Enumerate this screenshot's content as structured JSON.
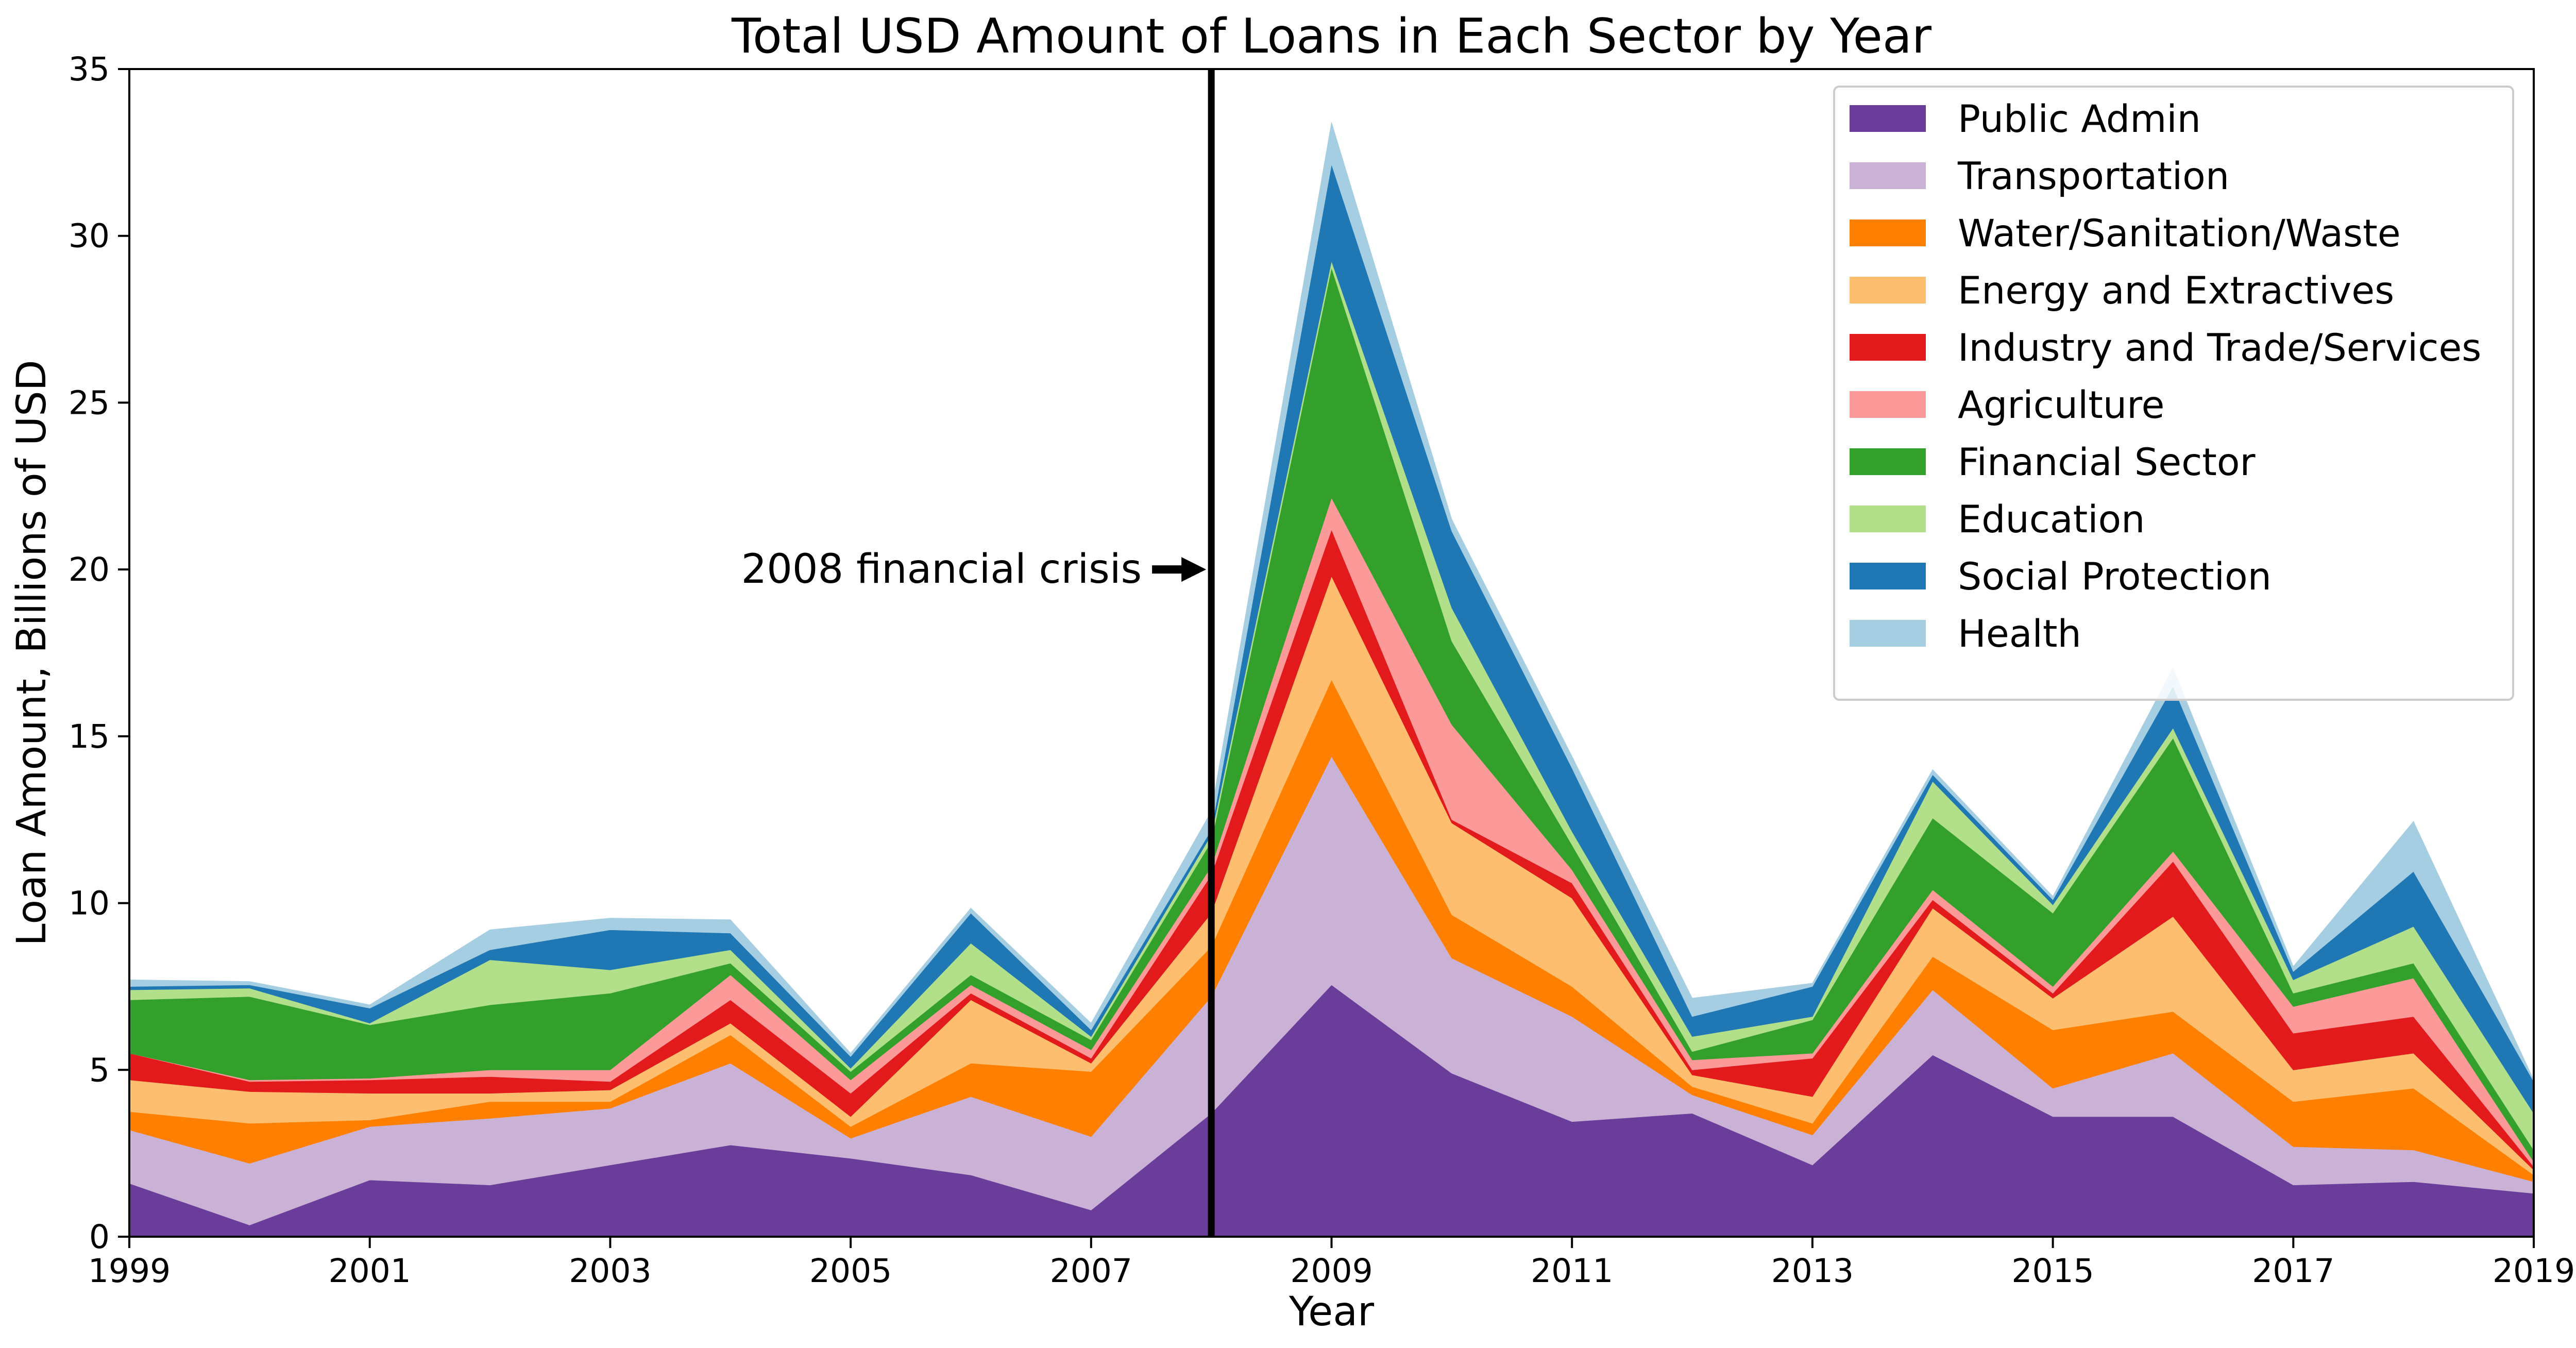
{
  "chart_data": {
    "type": "area",
    "stacked": true,
    "title": "Total USD Amount of Loans in Each Sector by Year",
    "xlabel": "Year",
    "ylabel": "Loan Amount, Billions of USD",
    "xlim": [
      1999,
      2019
    ],
    "ylim": [
      0,
      35
    ],
    "x_ticks": [
      "1999",
      "2001",
      "2003",
      "2005",
      "2007",
      "2009",
      "2011",
      "2013",
      "2015",
      "2017",
      "2019"
    ],
    "y_ticks": [
      "0",
      "5",
      "10",
      "15",
      "20",
      "25",
      "30",
      "35"
    ],
    "grid": false,
    "legend_position": "top-right",
    "x": [
      1999,
      2000,
      2001,
      2002,
      2003,
      2004,
      2005,
      2006,
      2007,
      2008,
      2009,
      2010,
      2011,
      2012,
      2013,
      2014,
      2015,
      2016,
      2017,
      2018,
      2019
    ],
    "series": [
      {
        "name": "Public Admin",
        "color": "#6a3d9a",
        "values": [
          1.6,
          0.35,
          1.7,
          1.55,
          2.15,
          2.75,
          2.35,
          1.85,
          0.8,
          3.7,
          7.55,
          4.9,
          3.45,
          3.7,
          2.15,
          5.45,
          3.6,
          3.6,
          1.55,
          1.65,
          1.3
        ]
      },
      {
        "name": "Transportation",
        "color": "#cab2d6",
        "values": [
          1.6,
          1.85,
          1.6,
          2.0,
          1.7,
          2.45,
          0.6,
          2.35,
          2.2,
          3.5,
          6.85,
          3.45,
          3.15,
          0.55,
          0.9,
          1.95,
          0.85,
          1.9,
          1.15,
          0.95,
          0.35
        ]
      },
      {
        "name": "Water/Sanitation/Waste",
        "color": "#ff7f00",
        "values": [
          0.55,
          1.2,
          0.2,
          0.5,
          0.2,
          0.85,
          0.35,
          1.0,
          1.95,
          1.5,
          2.3,
          1.3,
          0.9,
          0.25,
          0.35,
          1.0,
          1.75,
          1.25,
          1.35,
          1.85,
          0.2
        ]
      },
      {
        "name": "Energy and Extractives",
        "color": "#fdbf6f",
        "values": [
          0.95,
          0.95,
          0.8,
          0.25,
          0.35,
          0.35,
          0.3,
          1.9,
          0.25,
          1.0,
          3.1,
          2.75,
          2.65,
          0.35,
          0.8,
          1.45,
          0.95,
          2.85,
          0.95,
          1.05,
          0.15
        ]
      },
      {
        "name": "Industry and Trade/Services",
        "color": "#e31a1c",
        "values": [
          0.8,
          0.3,
          0.4,
          0.5,
          0.25,
          0.7,
          0.7,
          0.2,
          0.15,
          1.15,
          1.4,
          0.1,
          0.45,
          0.15,
          1.15,
          0.25,
          0.15,
          1.65,
          1.1,
          1.1,
          0.1
        ]
      },
      {
        "name": "Agriculture",
        "color": "#fb9a99",
        "values": [
          0.0,
          0.05,
          0.05,
          0.2,
          0.35,
          0.75,
          0.4,
          0.25,
          0.25,
          0.25,
          0.95,
          2.85,
          0.4,
          0.3,
          0.15,
          0.3,
          0.2,
          0.3,
          0.8,
          1.15,
          0.15
        ]
      },
      {
        "name": "Financial Sector",
        "color": "#33a02c",
        "values": [
          1.6,
          2.5,
          1.6,
          1.95,
          2.3,
          0.35,
          0.25,
          0.3,
          0.3,
          0.75,
          6.9,
          2.5,
          0.75,
          0.25,
          1.0,
          2.15,
          2.2,
          3.4,
          0.4,
          0.45,
          0.35
        ]
      },
      {
        "name": "Education",
        "color": "#b2df8a",
        "values": [
          0.3,
          0.25,
          0.05,
          1.35,
          0.7,
          0.4,
          0.1,
          0.95,
          0.1,
          0.2,
          0.2,
          1.0,
          0.4,
          0.45,
          0.1,
          1.1,
          0.25,
          0.3,
          0.4,
          1.1,
          1.1
        ]
      },
      {
        "name": "Social Protection",
        "color": "#1f78b4",
        "values": [
          0.1,
          0.1,
          0.45,
          0.3,
          1.2,
          0.5,
          0.35,
          0.9,
          0.2,
          0.15,
          2.9,
          2.3,
          1.9,
          0.6,
          0.9,
          0.2,
          0.15,
          1.25,
          0.25,
          1.65,
          0.95
        ]
      },
      {
        "name": "Health",
        "color": "#a6cee3",
        "values": [
          0.2,
          0.1,
          0.1,
          0.6,
          0.35,
          0.4,
          0.1,
          0.15,
          0.2,
          0.55,
          1.25,
          0.35,
          0.35,
          0.55,
          0.1,
          0.15,
          0.1,
          0.55,
          0.15,
          1.5,
          0.05
        ]
      }
    ],
    "annotations": [
      {
        "text": "2008 financial crisis",
        "x": 2008,
        "y": 20,
        "type": "vertical-line-with-arrow"
      }
    ]
  }
}
